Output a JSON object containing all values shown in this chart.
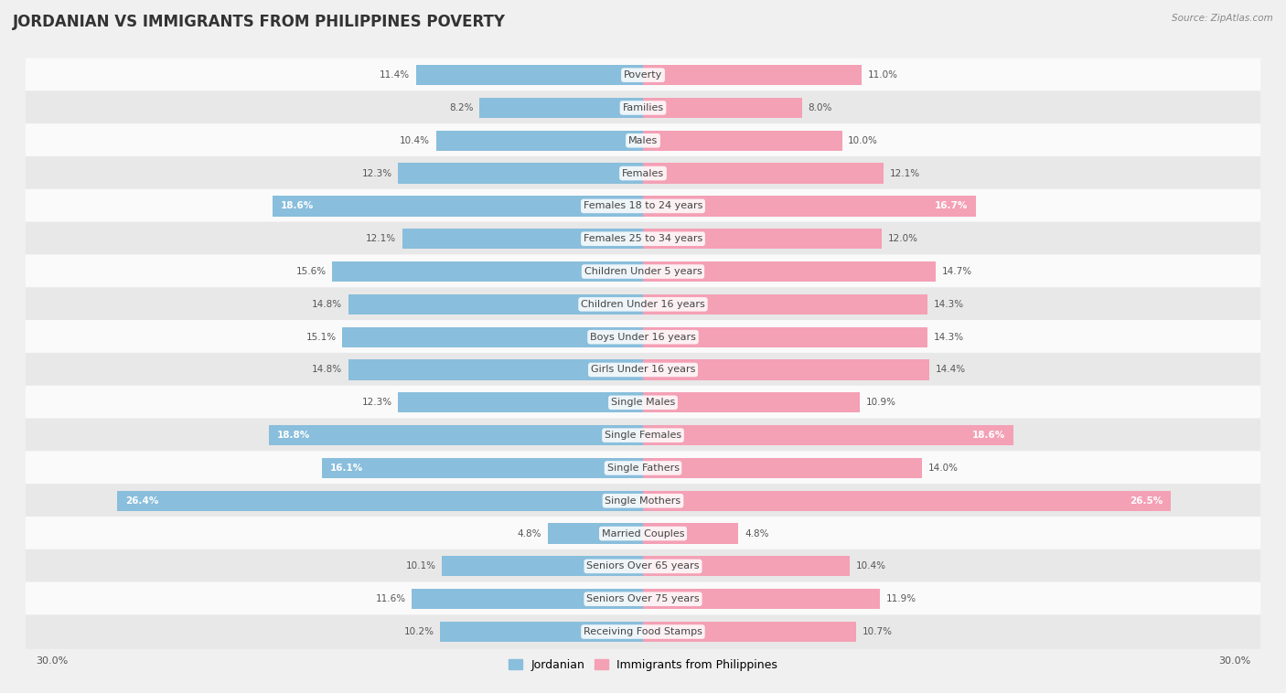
{
  "title": "JORDANIAN VS IMMIGRANTS FROM PHILIPPINES POVERTY",
  "source": "Source: ZipAtlas.com",
  "categories": [
    "Poverty",
    "Families",
    "Males",
    "Females",
    "Females 18 to 24 years",
    "Females 25 to 34 years",
    "Children Under 5 years",
    "Children Under 16 years",
    "Boys Under 16 years",
    "Girls Under 16 years",
    "Single Males",
    "Single Females",
    "Single Fathers",
    "Single Mothers",
    "Married Couples",
    "Seniors Over 65 years",
    "Seniors Over 75 years",
    "Receiving Food Stamps"
  ],
  "jordanian": [
    11.4,
    8.2,
    10.4,
    12.3,
    18.6,
    12.1,
    15.6,
    14.8,
    15.1,
    14.8,
    12.3,
    18.8,
    16.1,
    26.4,
    4.8,
    10.1,
    11.6,
    10.2
  ],
  "philippines": [
    11.0,
    8.0,
    10.0,
    12.1,
    16.7,
    12.0,
    14.7,
    14.3,
    14.3,
    14.4,
    10.9,
    18.6,
    14.0,
    26.5,
    4.8,
    10.4,
    11.9,
    10.7
  ],
  "jordanian_color": "#89bedc",
  "philippines_color": "#f4a0b5",
  "bar_height": 0.62,
  "xlim": 30,
  "background_color": "#f0f0f0",
  "row_light_color": "#fafafa",
  "row_dark_color": "#e8e8e8",
  "legend_jordanian": "Jordanian",
  "legend_philippines": "Immigrants from Philippines",
  "title_fontsize": 12,
  "label_fontsize": 8,
  "value_fontsize": 7.5,
  "axis_label_fontsize": 8
}
